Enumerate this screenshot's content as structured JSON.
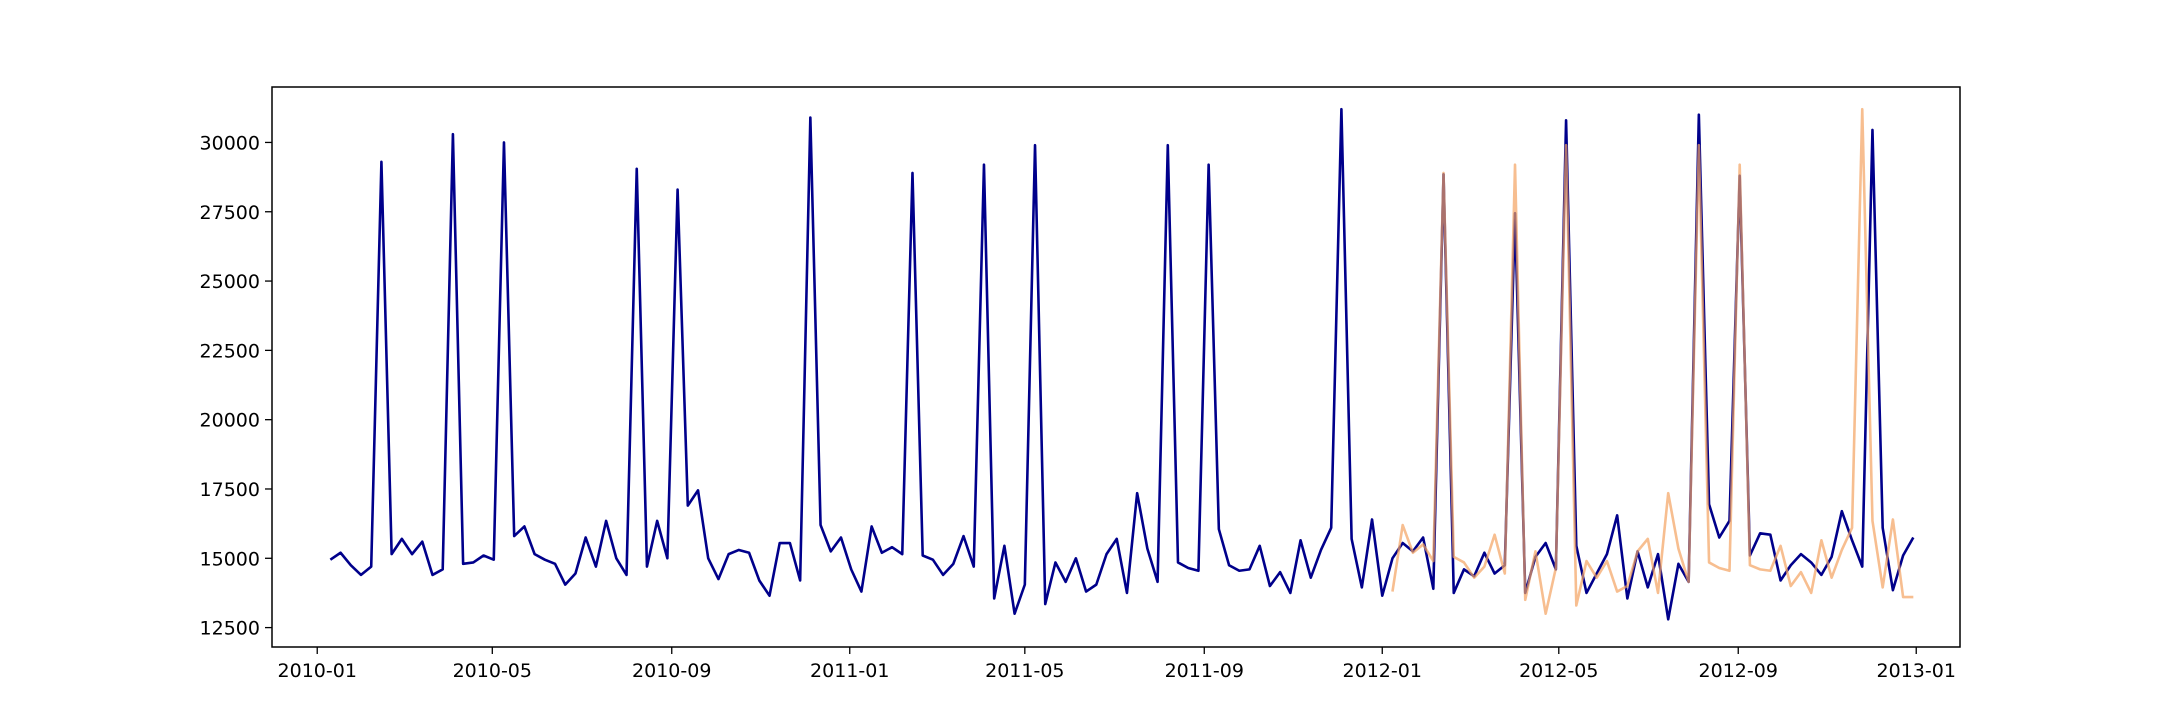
{
  "chart_data": {
    "type": "line",
    "title": "",
    "xlabel": "",
    "ylabel": "",
    "x_ticks": [
      "2010-01",
      "2010-05",
      "2010-09",
      "2011-01",
      "2011-05",
      "2011-09",
      "2012-01",
      "2012-05",
      "2012-09",
      "2013-01"
    ],
    "y_ticks": [
      12500,
      15000,
      17500,
      20000,
      22500,
      25000,
      27500,
      30000
    ],
    "ylim": [
      11800,
      32000
    ],
    "xlim": [
      "2009-12-01",
      "2013-01-31"
    ],
    "grid": false,
    "series": [
      {
        "color": "#00008b",
        "opacity": 1.0,
        "x": [
          "2010-01-10",
          "2010-01-17",
          "2010-01-24",
          "2010-01-31",
          "2010-02-07",
          "2010-02-14",
          "2010-02-21",
          "2010-02-28",
          "2010-03-07",
          "2010-03-14",
          "2010-03-21",
          "2010-03-28",
          "2010-04-04",
          "2010-04-11",
          "2010-04-18",
          "2010-04-25",
          "2010-05-02",
          "2010-05-09",
          "2010-05-16",
          "2010-05-23",
          "2010-05-30",
          "2010-06-06",
          "2010-06-13",
          "2010-06-20",
          "2010-06-27",
          "2010-07-04",
          "2010-07-11",
          "2010-07-18",
          "2010-07-25",
          "2010-08-01",
          "2010-08-08",
          "2010-08-15",
          "2010-08-22",
          "2010-08-29",
          "2010-09-05",
          "2010-09-12",
          "2010-09-19",
          "2010-09-26",
          "2010-10-03",
          "2010-10-10",
          "2010-10-17",
          "2010-10-24",
          "2010-10-31",
          "2010-11-07",
          "2010-11-14",
          "2010-11-21",
          "2010-11-28",
          "2010-12-05",
          "2010-12-12",
          "2010-12-19",
          "2010-12-26",
          "2011-01-02",
          "2011-01-09",
          "2011-01-16",
          "2011-01-23",
          "2011-01-30",
          "2011-02-06",
          "2011-02-13",
          "2011-02-20",
          "2011-02-27",
          "2011-03-06",
          "2011-03-13",
          "2011-03-20",
          "2011-03-27",
          "2011-04-03",
          "2011-04-10",
          "2011-04-17",
          "2011-04-24",
          "2011-05-01",
          "2011-05-08",
          "2011-05-15",
          "2011-05-22",
          "2011-05-29",
          "2011-06-05",
          "2011-06-12",
          "2011-06-19",
          "2011-06-26",
          "2011-07-03",
          "2011-07-10",
          "2011-07-17",
          "2011-07-24",
          "2011-07-31",
          "2011-08-07",
          "2011-08-14",
          "2011-08-21",
          "2011-08-28",
          "2011-09-04",
          "2011-09-11",
          "2011-09-18",
          "2011-09-25",
          "2011-10-02",
          "2011-10-09",
          "2011-10-16",
          "2011-10-23",
          "2011-10-30",
          "2011-11-06",
          "2011-11-13",
          "2011-11-20",
          "2011-11-27",
          "2011-12-04",
          "2011-12-11",
          "2011-12-18",
          "2011-12-25",
          "2012-01-01",
          "2012-01-08",
          "2012-01-15",
          "2012-01-22",
          "2012-01-29",
          "2012-02-05",
          "2012-02-12",
          "2012-02-19",
          "2012-02-26",
          "2012-03-04",
          "2012-03-11",
          "2012-03-18",
          "2012-03-25",
          "2012-04-01",
          "2012-04-08",
          "2012-04-15",
          "2012-04-22",
          "2012-04-29",
          "2012-05-06",
          "2012-05-13",
          "2012-05-20",
          "2012-05-27",
          "2012-06-03",
          "2012-06-10",
          "2012-06-17",
          "2012-06-24",
          "2012-07-01",
          "2012-07-08",
          "2012-07-15",
          "2012-07-22",
          "2012-07-29",
          "2012-08-05",
          "2012-08-12",
          "2012-08-19",
          "2012-08-26",
          "2012-09-02",
          "2012-09-09",
          "2012-09-16",
          "2012-09-23",
          "2012-09-30",
          "2012-10-07",
          "2012-10-14",
          "2012-10-21",
          "2012-10-28",
          "2012-11-04",
          "2012-11-11",
          "2012-11-18",
          "2012-11-25",
          "2012-12-02",
          "2012-12-09",
          "2012-12-16",
          "2012-12-23",
          "2012-12-30"
        ],
        "values": [
          14950,
          15200,
          14750,
          14400,
          14700,
          29300,
          15150,
          15700,
          15150,
          15600,
          14400,
          14600,
          30300,
          14800,
          14850,
          15100,
          14950,
          30000,
          15800,
          16150,
          15150,
          14950,
          14800,
          14050,
          14450,
          15750,
          14700,
          16350,
          15000,
          14400,
          29050,
          14700,
          16350,
          15000,
          28300,
          16900,
          17450,
          15000,
          14250,
          15150,
          15300,
          15200,
          14200,
          13650,
          15550,
          15550,
          14200,
          30900,
          16200,
          15250,
          15750,
          14600,
          13800,
          16150,
          15200,
          15400,
          15150,
          28900,
          15100,
          14950,
          14400,
          14800,
          15800,
          14700,
          29200,
          13550,
          15450,
          13000,
          14050,
          29900,
          13350,
          14850,
          14150,
          15000,
          13800,
          14050,
          15150,
          15700,
          13750,
          17350,
          15350,
          14150,
          29900,
          14850,
          14650,
          14550,
          29200,
          16050,
          14750,
          14550,
          14600,
          15450,
          14000,
          14500,
          13750,
          15650,
          14300,
          15300,
          16100,
          31200,
          15700,
          13950,
          16400,
          13650,
          15000,
          15550,
          15250,
          15750,
          13900,
          28850,
          13750,
          14600,
          14350,
          15200,
          14450,
          14750,
          27450,
          13750,
          15050,
          15550,
          14600,
          30800,
          15450,
          13750,
          14450,
          15150,
          16550,
          13550,
          15250,
          13950,
          15150,
          12800,
          14800,
          14150,
          31000,
          16950,
          15750,
          16350,
          28800,
          15100,
          15900,
          15850,
          14200,
          14750,
          15150,
          14850,
          14400,
          15050,
          16700,
          15650,
          14700,
          30450,
          16100,
          13850,
          15100,
          15750
        ]
      },
      {
        "color": "#f4a261",
        "opacity": 0.7,
        "x": [
          "2012-01-08",
          "2012-01-15",
          "2012-01-22",
          "2012-01-29",
          "2012-02-05",
          "2012-02-12",
          "2012-02-19",
          "2012-02-26",
          "2012-03-04",
          "2012-03-11",
          "2012-03-18",
          "2012-03-25",
          "2012-04-01",
          "2012-04-08",
          "2012-04-15",
          "2012-04-22",
          "2012-04-29",
          "2012-05-06",
          "2012-05-13",
          "2012-05-20",
          "2012-05-27",
          "2012-06-03",
          "2012-06-10",
          "2012-06-17",
          "2012-06-24",
          "2012-07-01",
          "2012-07-08",
          "2012-07-15",
          "2012-07-22",
          "2012-07-29",
          "2012-08-05",
          "2012-08-12",
          "2012-08-19",
          "2012-08-26",
          "2012-09-02",
          "2012-09-09",
          "2012-09-16",
          "2012-09-23",
          "2012-09-30",
          "2012-10-07",
          "2012-10-14",
          "2012-10-21",
          "2012-10-28",
          "2012-11-04",
          "2012-11-11",
          "2012-11-18",
          "2012-11-25",
          "2012-12-02",
          "2012-12-09",
          "2012-12-16",
          "2012-12-23",
          "2012-12-30"
        ],
        "values": [
          13800,
          16200,
          15200,
          15500,
          14900,
          28900,
          15050,
          14850,
          14300,
          14700,
          15850,
          14450,
          29200,
          13500,
          15250,
          13000,
          14650,
          29900,
          13300,
          14900,
          14300,
          14900,
          13800,
          14000,
          15250,
          15700,
          13750,
          17350,
          15350,
          14150,
          29900,
          14850,
          14650,
          14550,
          29200,
          14750,
          14600,
          14550,
          15450,
          14000,
          14500,
          13750,
          15650,
          14300,
          15300,
          16100,
          31200,
          16350,
          13950,
          16400,
          13600,
          13600
        ]
      }
    ]
  }
}
